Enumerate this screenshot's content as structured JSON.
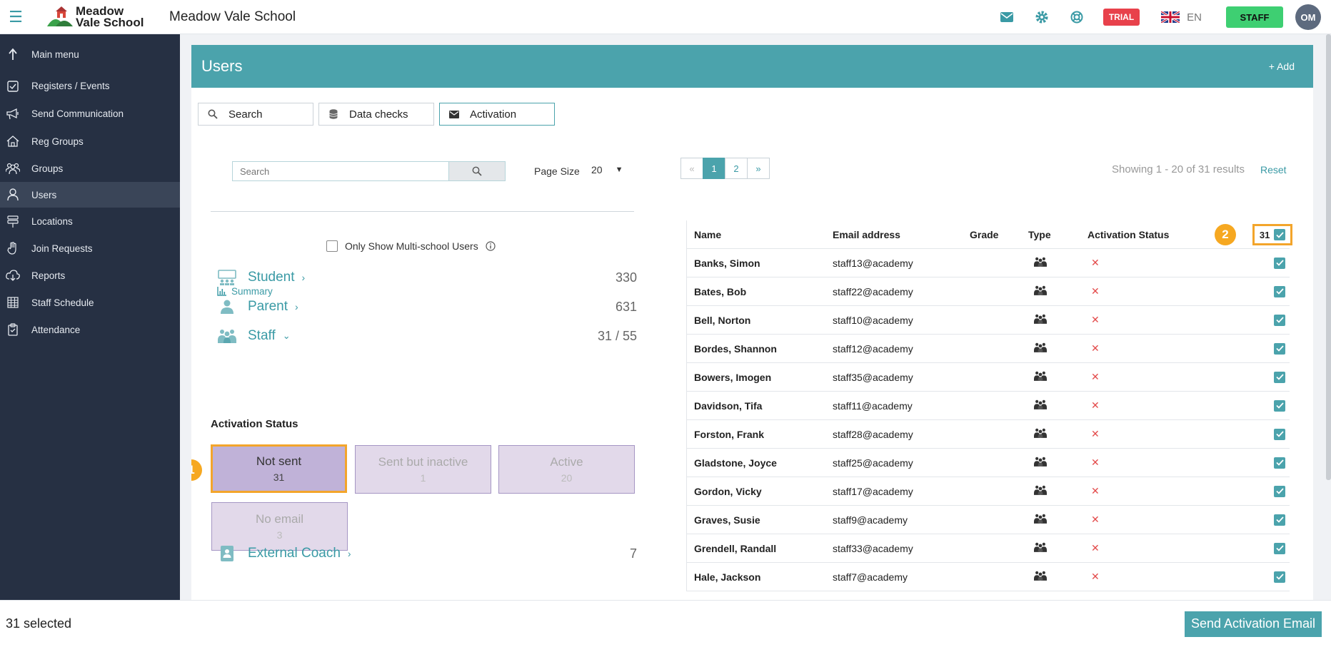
{
  "header": {
    "logo_line1": "Meadow",
    "logo_line2": "Vale School",
    "title": "Meadow Vale School",
    "trial_badge": "TRIAL",
    "language": "EN",
    "role_button": "STAFF",
    "avatar_initials": "OM",
    "accent_color": "#4ba3ac"
  },
  "sidebar": {
    "items": [
      {
        "label": "Main menu",
        "icon": "arrow-up-icon"
      },
      {
        "label": "Registers / Events",
        "icon": "checkbox-icon"
      },
      {
        "label": "Send Communication",
        "icon": "megaphone-icon"
      },
      {
        "label": "Reg Groups",
        "icon": "home-icon"
      },
      {
        "label": "Groups",
        "icon": "people-icon"
      },
      {
        "label": "Users",
        "icon": "user-icon"
      },
      {
        "label": "Locations",
        "icon": "signpost-icon"
      },
      {
        "label": "Join Requests",
        "icon": "hand-icon"
      },
      {
        "label": "Reports",
        "icon": "cloud-download-icon"
      },
      {
        "label": "Staff Schedule",
        "icon": "calendar-grid-icon"
      },
      {
        "label": "Attendance",
        "icon": "clipboard-icon"
      }
    ],
    "active_index": 5
  },
  "panel": {
    "title": "Users",
    "add_label": "+ Add"
  },
  "tabs": [
    {
      "label": "Search",
      "icon": "search-icon"
    },
    {
      "label": "Data checks",
      "icon": "database-icon"
    },
    {
      "label": "Activation",
      "icon": "envelope-icon"
    }
  ],
  "filters": {
    "search_placeholder": "Search",
    "page_size_label": "Page Size",
    "page_size_value": "20",
    "multi_school_label": "Only Show Multi-school Users",
    "summary_label": "Summary"
  },
  "categories": [
    {
      "label": "Student",
      "count": "330",
      "icon": "classroom-icon",
      "expanded": false
    },
    {
      "label": "Parent",
      "count": "631",
      "icon": "person-icon",
      "expanded": false
    },
    {
      "label": "Staff",
      "count": "31 / 55",
      "icon": "staff-icon",
      "expanded": true
    },
    {
      "label": "External Coach",
      "count": "7",
      "icon": "badge-icon",
      "expanded": false
    }
  ],
  "activation": {
    "title": "Activation Status",
    "boxes": [
      {
        "label": "Not sent",
        "count": "31",
        "selected": true
      },
      {
        "label": "Sent but inactive",
        "count": "1",
        "selected": false
      },
      {
        "label": "Active",
        "count": "20",
        "selected": false
      },
      {
        "label": "No email",
        "count": "3",
        "selected": false
      }
    ]
  },
  "badges": [
    "1",
    "2"
  ],
  "pagination": {
    "prev": "«",
    "pages": [
      "1",
      "2"
    ],
    "current": "1",
    "next": "»",
    "showing": "Showing 1 - 20 of 31 results",
    "reset": "Reset"
  },
  "table": {
    "columns": [
      "Name",
      "Email address",
      "Grade",
      "Type",
      "Activation Status"
    ],
    "select_all_count": "31",
    "rows": [
      {
        "name": "Banks, Simon",
        "email": "staff13@academy"
      },
      {
        "name": "Bates, Bob",
        "email": "staff22@academy"
      },
      {
        "name": "Bell, Norton",
        "email": "staff10@academy"
      },
      {
        "name": "Bordes, Shannon",
        "email": "staff12@academy"
      },
      {
        "name": "Bowers, Imogen",
        "email": "staff35@academy"
      },
      {
        "name": "Davidson, Tifa",
        "email": "staff11@academy"
      },
      {
        "name": "Forston, Frank",
        "email": "staff28@academy"
      },
      {
        "name": "Gladstone, Joyce",
        "email": "staff25@academy"
      },
      {
        "name": "Gordon, Vicky",
        "email": "staff17@academy"
      },
      {
        "name": "Graves, Susie",
        "email": "staff9@academy"
      },
      {
        "name": "Grendell, Randall",
        "email": "staff33@academy"
      },
      {
        "name": "Hale, Jackson",
        "email": "staff7@academy"
      }
    ],
    "status_mark": "✕"
  },
  "footer": {
    "selected_text": "31 selected",
    "send_button": "Send Activation Email"
  }
}
